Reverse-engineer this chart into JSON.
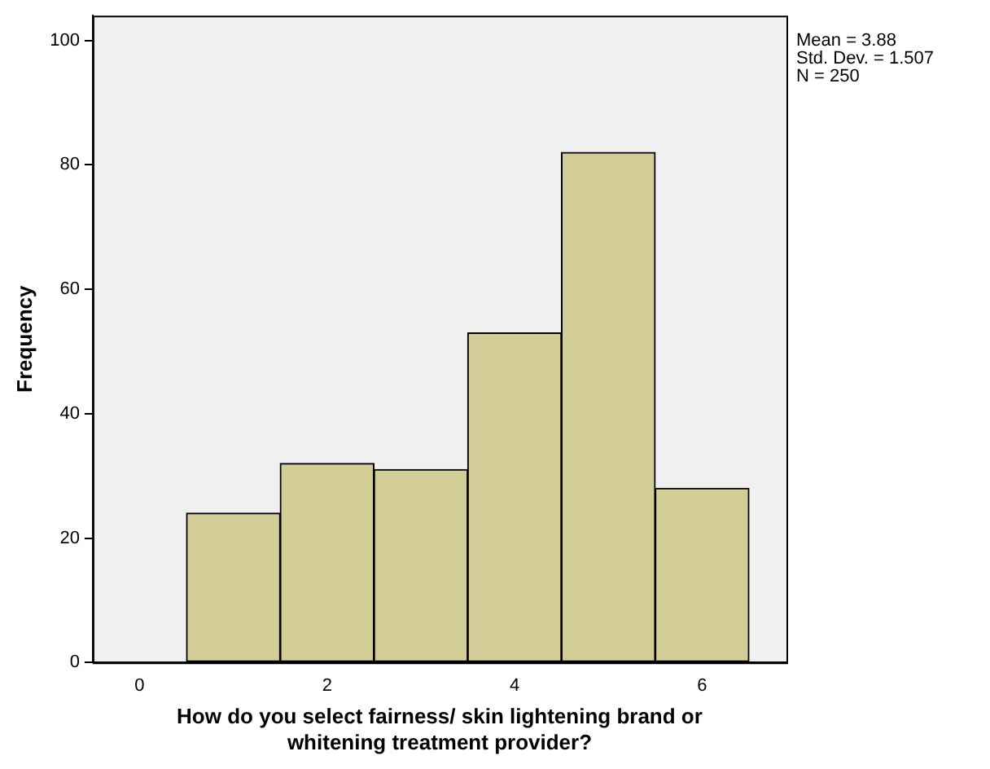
{
  "chart_data": {
    "type": "histogram",
    "xlabel": "How do you select fairness/ skin lightening brand or whitening treatment provider?",
    "ylabel": "Frequency",
    "bins": [
      0.5,
      1.5,
      2.5,
      3.5,
      4.5,
      5.5,
      6.5
    ],
    "values": [
      24,
      32,
      31,
      53,
      82,
      28
    ],
    "color": "#d3ce97",
    "xlim": [
      -0.5,
      6.9
    ],
    "xticks": [
      0,
      2,
      4,
      6
    ],
    "ylim": [
      0,
      104
    ],
    "yticks": [
      0,
      20,
      40,
      60,
      80,
      100
    ],
    "grid": false,
    "annotations": [
      "Mean = 3.88",
      "Std. Dev. = 1.507",
      "N = 250"
    ]
  }
}
